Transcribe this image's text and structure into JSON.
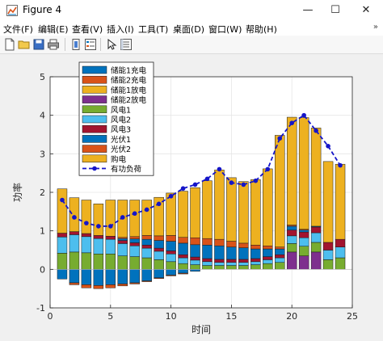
{
  "window": {
    "title": "Figure 4",
    "minimize": "—",
    "maximize": "☐",
    "close": "✕"
  },
  "menu": {
    "items": [
      "文件(F)",
      "编辑(E)",
      "查看(V)",
      "插入(I)",
      "工具(T)",
      "桌面(D)",
      "窗口(W)",
      "帮助(H)"
    ],
    "overflow": "»"
  },
  "toolbar": {
    "buttons": [
      "new-file-icon",
      "open-folder-icon",
      "save-icon",
      "print-icon",
      "link-plot-icon",
      "insert-legend-icon",
      "pointer-icon",
      "property-inspector-icon"
    ]
  },
  "colors": {
    "titlebar": "#ffffff",
    "axes_bg": "#ffffff",
    "grid": "#e6e6e6",
    "load_line": "#1515c8"
  },
  "chart_data": {
    "type": "bar",
    "stacked": true,
    "xlabel": "时间",
    "ylabel": "功率",
    "xlim": [
      0,
      25
    ],
    "ylim": [
      -1,
      5
    ],
    "xticks": [
      0,
      5,
      10,
      15,
      20,
      25
    ],
    "yticks": [
      -1,
      0,
      1,
      2,
      3,
      4,
      5
    ],
    "grid": true,
    "legend_position": "top-left",
    "x": [
      1,
      2,
      3,
      4,
      5,
      6,
      7,
      8,
      9,
      10,
      11,
      12,
      13,
      14,
      15,
      16,
      17,
      18,
      19,
      20,
      21,
      22,
      23,
      24
    ],
    "series": [
      {
        "name": "储能1充电",
        "color": "#0072bd",
        "values": [
          -0.25,
          -0.35,
          -0.4,
          -0.42,
          -0.4,
          -0.38,
          -0.35,
          -0.3,
          -0.22,
          -0.15,
          -0.1,
          -0.05,
          0,
          0,
          0,
          0,
          0,
          0,
          0,
          0,
          0,
          0,
          0,
          0
        ]
      },
      {
        "name": "储能2充电",
        "color": "#d95319",
        "values": [
          0,
          -0.05,
          -0.08,
          -0.08,
          -0.08,
          -0.05,
          -0.03,
          -0.02,
          -0.02,
          -0.02,
          -0.02,
          0,
          0,
          0,
          0,
          0,
          0,
          0,
          0,
          0,
          0,
          0,
          0,
          0
        ]
      },
      {
        "name": "储能1放电",
        "color": "#edb120",
        "values": [
          0,
          0,
          0,
          0,
          0,
          0,
          0,
          0,
          0,
          0,
          0,
          0,
          0,
          0,
          0,
          0,
          0,
          0,
          0,
          0,
          0,
          0,
          0,
          0
        ]
      },
      {
        "name": "储能2放电",
        "color": "#7e2f8e",
        "values": [
          0,
          0,
          0,
          0,
          0,
          0,
          0,
          0,
          0,
          0,
          0,
          0,
          0,
          0,
          0,
          0,
          0,
          0,
          0,
          0.45,
          0.35,
          0.45,
          0,
          0
        ]
      },
      {
        "name": "风电1",
        "color": "#77ac30",
        "values": [
          0.42,
          0.45,
          0.43,
          0.4,
          0.4,
          0.35,
          0.33,
          0.3,
          0.25,
          0.2,
          0.15,
          0.12,
          0.1,
          0.1,
          0.1,
          0.1,
          0.12,
          0.15,
          0.18,
          0.22,
          0.25,
          0.25,
          0.25,
          0.3
        ]
      },
      {
        "name": "风电2",
        "color": "#4dbeee",
        "values": [
          0.42,
          0.45,
          0.42,
          0.4,
          0.38,
          0.32,
          0.28,
          0.25,
          0.22,
          0.2,
          0.15,
          0.12,
          0.1,
          0.08,
          0.08,
          0.08,
          0.08,
          0.1,
          0.12,
          0.2,
          0.22,
          0.25,
          0.25,
          0.28
        ]
      },
      {
        "name": "风电3",
        "color": "#a2142f",
        "values": [
          0.1,
          0.08,
          0.08,
          0.08,
          0.08,
          0.08,
          0.08,
          0.08,
          0.08,
          0.08,
          0.08,
          0.08,
          0.08,
          0.08,
          0.08,
          0.08,
          0.08,
          0.08,
          0.08,
          0.15,
          0.15,
          0.15,
          0.2,
          0.2
        ]
      },
      {
        "name": "光伏1",
        "color": "#0072bd",
        "values": [
          0,
          0,
          0,
          0,
          0,
          0.05,
          0.1,
          0.15,
          0.2,
          0.25,
          0.3,
          0.32,
          0.35,
          0.35,
          0.32,
          0.3,
          0.25,
          0.2,
          0.15,
          0.1,
          0.05,
          0.02,
          0,
          0
        ]
      },
      {
        "name": "光伏2",
        "color": "#d95319",
        "values": [
          0,
          0,
          0,
          0,
          0,
          0.03,
          0.06,
          0.1,
          0.12,
          0.15,
          0.15,
          0.18,
          0.17,
          0.17,
          0.15,
          0.12,
          0.1,
          0.08,
          0.05,
          0.03,
          0.02,
          0,
          0,
          0
        ]
      },
      {
        "name": "购电",
        "color": "#edb120",
        "values": [
          1.15,
          0.88,
          0.87,
          0.82,
          0.94,
          0.97,
          0.95,
          0.92,
          1.0,
          1.1,
          1.2,
          1.3,
          1.5,
          1.8,
          1.65,
          1.6,
          1.7,
          2.0,
          2.9,
          2.8,
          2.9,
          2.55,
          2.1,
          1.95
        ]
      }
    ],
    "load": {
      "name": "有功负荷",
      "color": "#1515c8",
      "values": [
        1.8,
        1.35,
        1.2,
        1.12,
        1.12,
        1.35,
        1.45,
        1.55,
        1.7,
        1.9,
        2.1,
        2.2,
        2.35,
        2.6,
        2.25,
        2.2,
        2.3,
        2.6,
        3.4,
        3.8,
        4.0,
        3.6,
        3.2,
        2.7
      ]
    }
  }
}
